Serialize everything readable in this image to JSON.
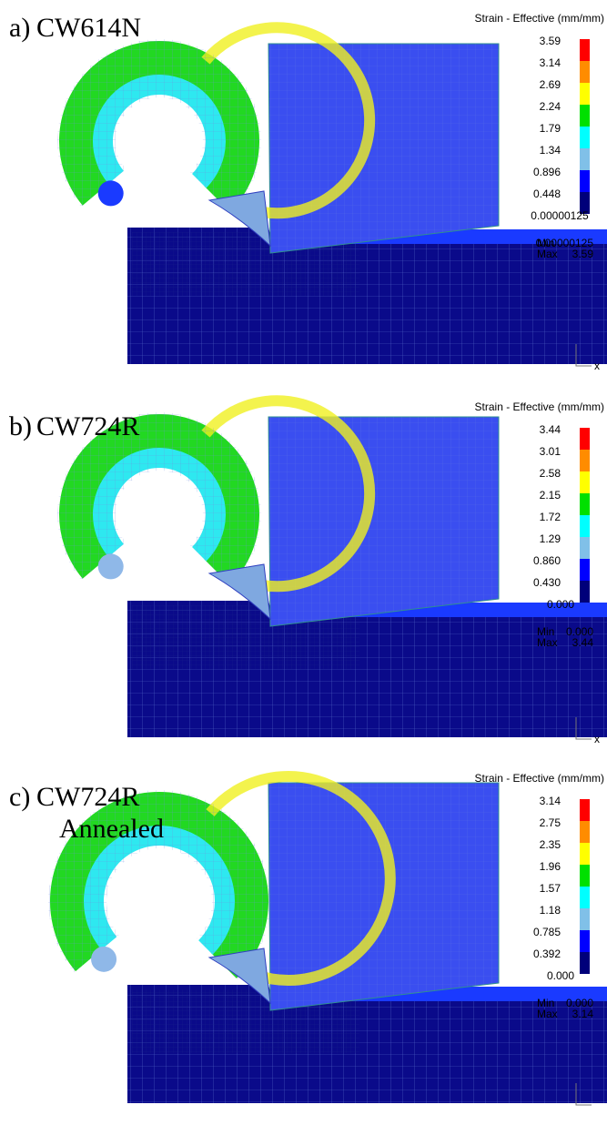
{
  "panels": [
    {
      "label": "a)",
      "material": [
        "CW614N"
      ],
      "legend": {
        "title": "Strain - Effective (mm/mm)",
        "ticks": [
          "3.59",
          "3.14",
          "2.69",
          "2.24",
          "1.79",
          "1.34",
          "0.896",
          "0.448",
          "0.00000125"
        ],
        "min_label": "Min",
        "min": "0.00000125",
        "max_label": "Max",
        "max": "3.59"
      },
      "axis_label": "x"
    },
    {
      "label": "b)",
      "material": [
        "CW724R"
      ],
      "legend": {
        "title": "Strain - Effective (mm/mm)",
        "ticks": [
          "3.44",
          "3.01",
          "2.58",
          "2.15",
          "1.72",
          "1.29",
          "0.860",
          "0.430",
          "0.000"
        ],
        "min_label": "Min",
        "min": "0.000",
        "max_label": "Max",
        "max": "3.44"
      },
      "axis_label": "x"
    },
    {
      "label": "c)",
      "material": [
        "CW724R",
        "Annealed"
      ],
      "legend": {
        "title": "Strain - Effective (mm/mm)",
        "ticks": [
          "3.14",
          "2.75",
          "2.35",
          "1.96",
          "1.57",
          "1.18",
          "0.785",
          "0.392",
          "0.000"
        ],
        "min_label": "Min",
        "min": "0.000",
        "max_label": "Max",
        "max": "3.14"
      }
    }
  ]
}
